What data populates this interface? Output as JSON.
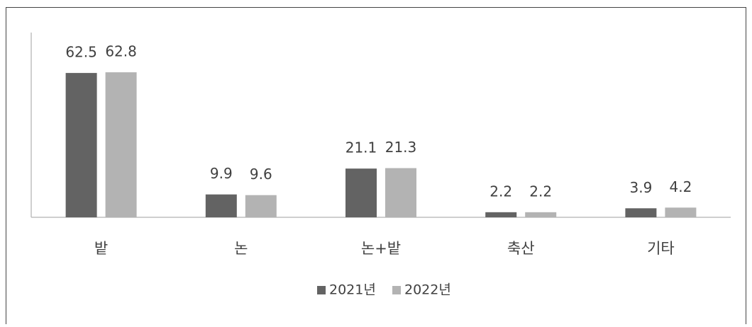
{
  "chart_data": {
    "type": "bar",
    "categories": [
      "밭",
      "논",
      "논+밭",
      "축산",
      "기타"
    ],
    "series": [
      {
        "name": "2021년",
        "color": "#636363",
        "values": [
          62.5,
          9.9,
          21.1,
          2.2,
          3.9
        ]
      },
      {
        "name": "2022년",
        "color": "#b3b3b3",
        "values": [
          62.8,
          9.6,
          21.3,
          2.2,
          4.2
        ]
      }
    ],
    "ylim": [
      0,
      80
    ],
    "legend": "bottom"
  }
}
